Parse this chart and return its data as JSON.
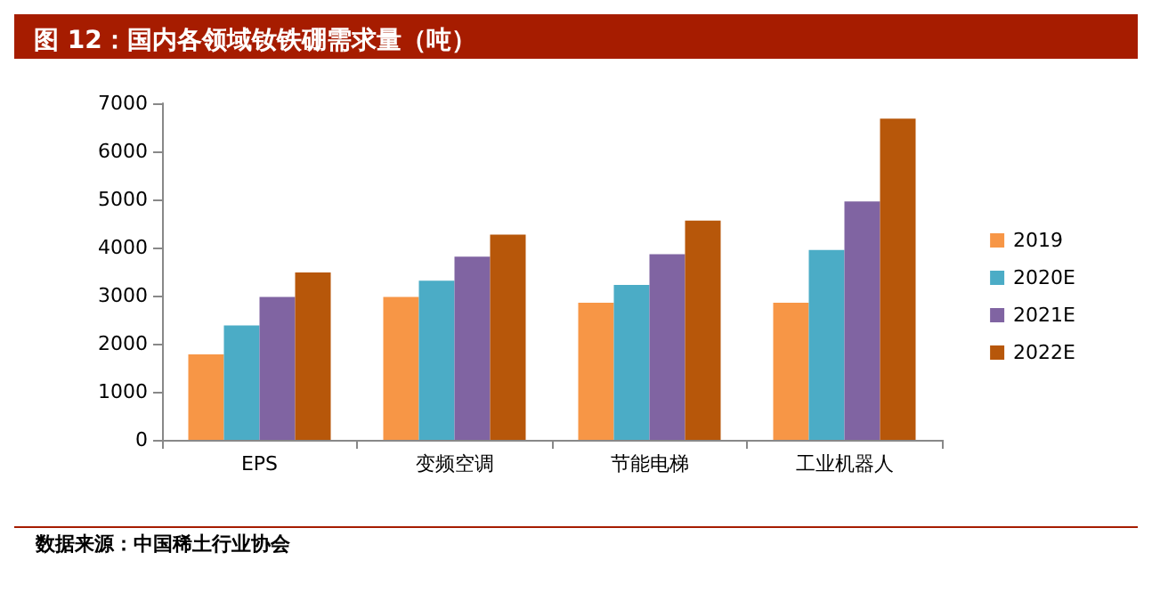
{
  "chart_data": {
    "type": "bar",
    "title": "图 12：国内各领域钕铁硼需求量（吨）",
    "categories": [
      "EPS",
      "变频空调",
      "节能电梯",
      "工业机器人"
    ],
    "series": [
      {
        "name": "2019",
        "color": "#f79646",
        "values": [
          1780,
          2970,
          2850,
          2850
        ]
      },
      {
        "name": "2020E",
        "color": "#4bacc6",
        "values": [
          2380,
          3310,
          3220,
          3950
        ]
      },
      {
        "name": "2021E",
        "color": "#8064a2",
        "values": [
          2970,
          3810,
          3860,
          4960
        ]
      },
      {
        "name": "2022E",
        "color": "#b7570a",
        "values": [
          3480,
          4270,
          4560,
          6680
        ]
      }
    ],
    "ylim": [
      0,
      7000
    ],
    "yticks": [
      0,
      1000,
      2000,
      3000,
      4000,
      5000,
      6000,
      7000
    ],
    "grid": false,
    "legend": "right",
    "annotations": [
      "数据来源：中国稀土行业协会"
    ]
  }
}
